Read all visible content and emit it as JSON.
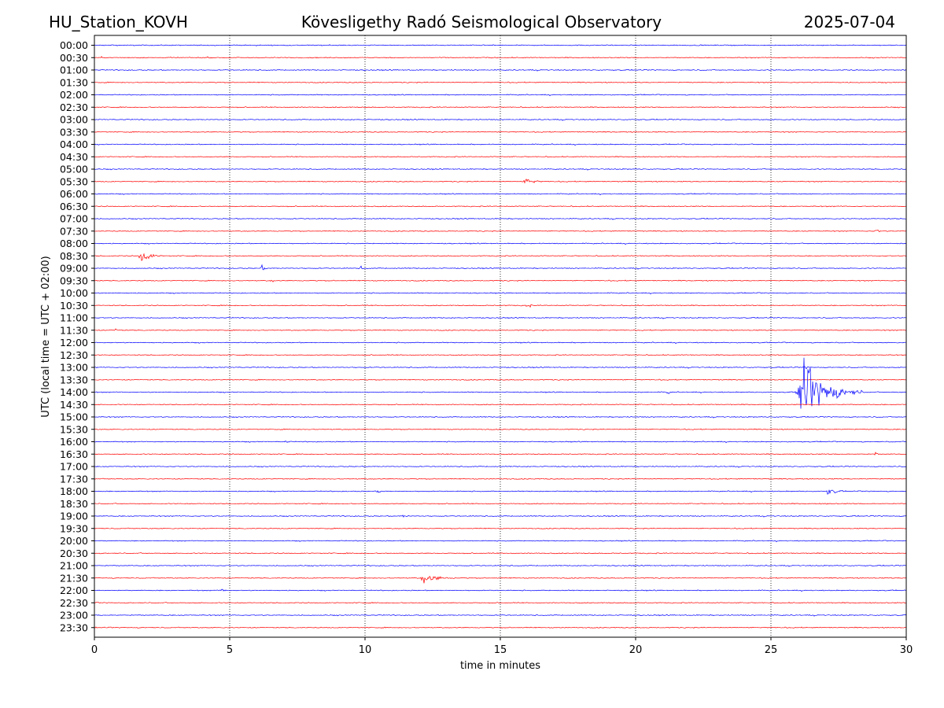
{
  "header": {
    "station": "HU_Station_KOVH",
    "observatory": "Kövesligethy Radó Seismological Observatory",
    "date": "2025-07-04"
  },
  "chart_data": {
    "type": "line",
    "xlabel": "time in minutes",
    "ylabel": "UTC (local time = UTC + 02:00)",
    "xlim": [
      0,
      30
    ],
    "x_ticks": [
      0,
      5,
      10,
      15,
      20,
      25,
      30
    ],
    "x_tick_labels": [
      "0",
      "5",
      "10",
      "15",
      "20",
      "25",
      "30"
    ],
    "grid": "vertical dotted at x ticks",
    "row_labels": [
      "00:00",
      "00:30",
      "01:00",
      "01:30",
      "02:00",
      "02:30",
      "03:00",
      "03:30",
      "04:00",
      "04:30",
      "05:00",
      "05:30",
      "06:00",
      "06:30",
      "07:00",
      "07:30",
      "08:00",
      "08:30",
      "09:00",
      "09:30",
      "10:00",
      "10:30",
      "11:00",
      "11:30",
      "12:00",
      "12:30",
      "13:00",
      "13:30",
      "14:00",
      "14:30",
      "15:00",
      "15:30",
      "16:00",
      "16:30",
      "17:00",
      "17:30",
      "18:00",
      "18:30",
      "19:00",
      "19:30",
      "20:00",
      "20:30",
      "21:00",
      "21:30",
      "22:00",
      "22:30",
      "23:00",
      "23:30"
    ],
    "colors": [
      "#0000ff",
      "#ff0000"
    ],
    "baseline_noise": 0.6,
    "events": [
      {
        "row": "05:30",
        "minute": 15.8,
        "duration": 1.2,
        "amplitude": 4
      },
      {
        "row": "08:30",
        "minute": 1.6,
        "duration": 1.0,
        "amplitude": 9
      },
      {
        "row": "09:00",
        "minute": 6.1,
        "duration": 0.6,
        "amplitude": 4
      },
      {
        "row": "09:00",
        "minute": 9.8,
        "duration": 0.3,
        "amplitude": 3
      },
      {
        "row": "09:30",
        "minute": 6.5,
        "duration": 0.3,
        "amplitude": 3
      },
      {
        "row": "10:30",
        "minute": 15.9,
        "duration": 0.5,
        "amplitude": 4
      },
      {
        "row": "11:30",
        "minute": 0.7,
        "duration": 0.6,
        "amplitude": 3
      },
      {
        "row": "13:30",
        "minute": 17.2,
        "duration": 0.4,
        "amplitude": 3
      },
      {
        "row": "14:00",
        "minute": 21.1,
        "duration": 0.4,
        "amplitude": 4
      },
      {
        "row": "14:00",
        "minute": 25.9,
        "duration": 2.5,
        "amplitude": 36
      },
      {
        "row": "16:00",
        "minute": 7.0,
        "duration": 0.6,
        "amplitude": 2
      },
      {
        "row": "16:30",
        "minute": 28.8,
        "duration": 0.4,
        "amplitude": 3
      },
      {
        "row": "18:00",
        "minute": 10.4,
        "duration": 0.8,
        "amplitude": 3
      },
      {
        "row": "18:00",
        "minute": 27.0,
        "duration": 1.0,
        "amplitude": 5
      },
      {
        "row": "18:30",
        "minute": 27.0,
        "duration": 0.3,
        "amplitude": 3
      },
      {
        "row": "19:00",
        "minute": 11.3,
        "duration": 0.8,
        "amplitude": 2
      },
      {
        "row": "21:30",
        "minute": 12.0,
        "duration": 1.6,
        "amplitude": 7
      },
      {
        "row": "22:00",
        "minute": 4.6,
        "duration": 0.8,
        "amplitude": 2
      },
      {
        "row": "07:30",
        "minute": 28.8,
        "duration": 0.6,
        "amplitude": 3
      },
      {
        "row": "13:00",
        "minute": 26.2,
        "duration": 0.4,
        "amplitude": 3
      }
    ]
  }
}
